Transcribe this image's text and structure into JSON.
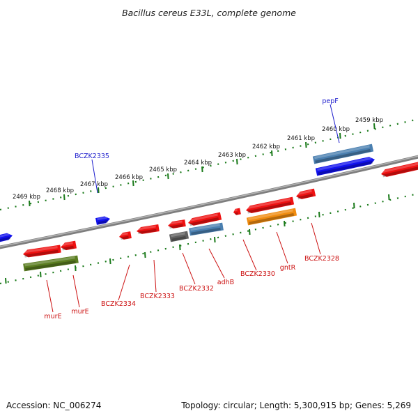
{
  "title": "Bacillus cereus E33L, complete genome",
  "footer": {
    "accession": "Accession: NC_006274",
    "summary": "Topology: circular; Length: 5,300,915 bp; Genes: 5,269"
  },
  "colors": {
    "backbone": "#8a8a8a",
    "ticks": "#1a7a1a",
    "gene_red": "#ee1111",
    "gene_blue": "#1111ee",
    "gene_steel": "#4a7fb0",
    "gene_olive": "#5a7d20",
    "gene_gray": "#606060",
    "gene_orange": "#f08c10",
    "label_red": "#cc1111",
    "label_blue": "#1a1acc"
  },
  "kbp_labels": [
    "2469 kbp",
    "2468 kbp",
    "2467 kbp",
    "2466 kbp",
    "2465 kbp",
    "2464 kbp",
    "2463 kbp",
    "2462 kbp",
    "2461 kbp",
    "2460 kbp",
    "2459 kbp"
  ],
  "upper_labels": [
    {
      "text": "BCZK2335",
      "color": "blue"
    },
    {
      "text": "pepF",
      "color": "blue"
    }
  ],
  "lower_labels": [
    {
      "text": "murE",
      "color": "red"
    },
    {
      "text": "murE",
      "color": "red"
    },
    {
      "text": "BCZK2334",
      "color": "red"
    },
    {
      "text": "BCZK2333",
      "color": "red"
    },
    {
      "text": "BCZK2332",
      "color": "red"
    },
    {
      "text": "adhB",
      "color": "red"
    },
    {
      "text": "BCZK2330",
      "color": "red"
    },
    {
      "text": "gntR",
      "color": "red"
    },
    {
      "text": "BCZK2328",
      "color": "red"
    }
  ]
}
